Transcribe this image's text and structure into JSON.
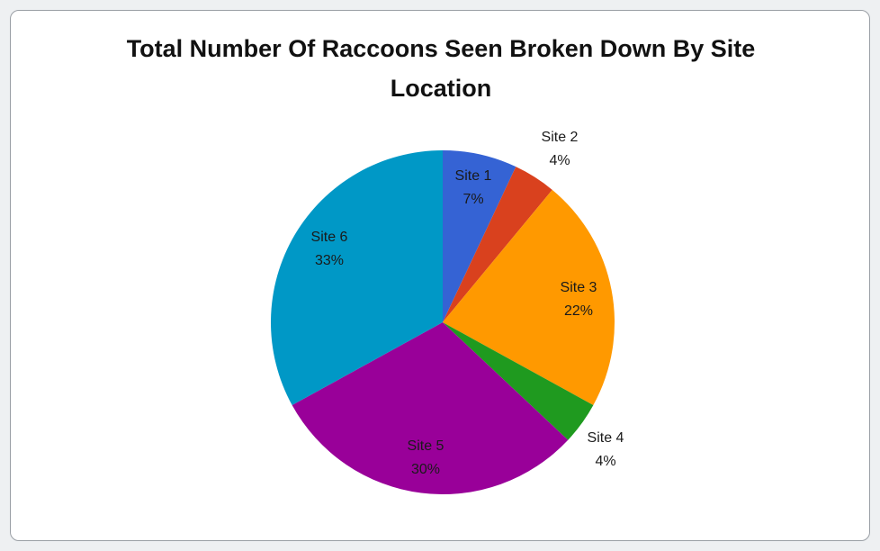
{
  "chart_data": {
    "type": "pie",
    "title_line1": "Total Number Of Raccoons Seen Broken Down By Site",
    "title_line2": "Location",
    "categories": [
      "Site 1",
      "Site 2",
      "Site 3",
      "Site 4",
      "Site 5",
      "Site 6"
    ],
    "values": [
      7,
      4,
      22,
      4,
      30,
      33
    ],
    "percent_labels": [
      "7%",
      "4%",
      "22%",
      "4%",
      "30%",
      "33%"
    ],
    "colors": [
      "#3563d4",
      "#d9411e",
      "#ff9900",
      "#1f9a1f",
      "#990099",
      "#0098c6"
    ],
    "legend": "none"
  }
}
